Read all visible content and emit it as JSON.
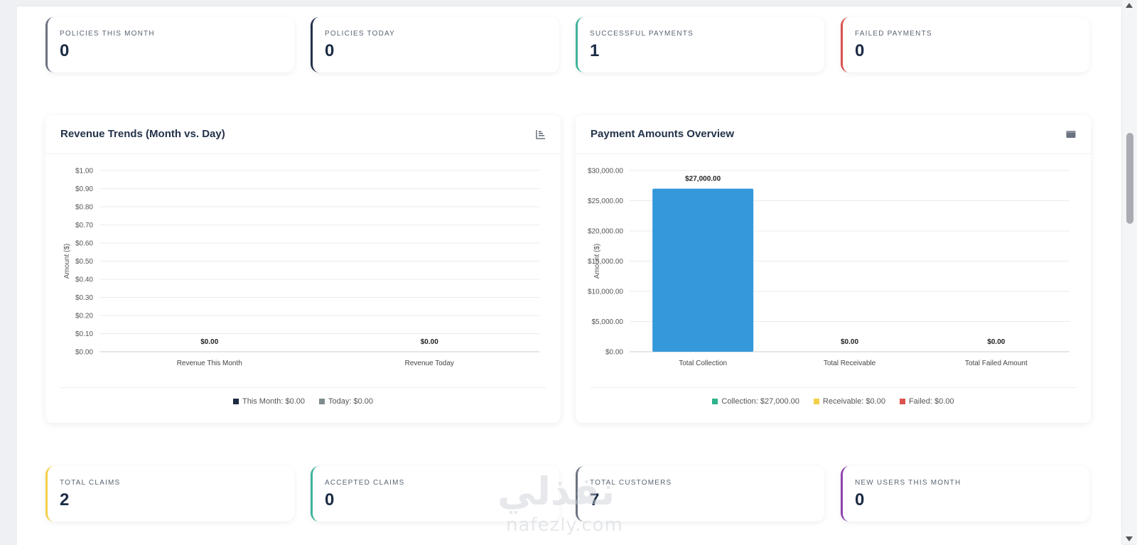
{
  "stats_top": [
    {
      "label": "POLICIES THIS MONTH",
      "value": "0",
      "accent": "#6b7280"
    },
    {
      "label": "POLICIES TODAY",
      "value": "0",
      "accent": "#23324a"
    },
    {
      "label": "SUCCESSFUL PAYMENTS",
      "value": "1",
      "accent": "#3fb39a"
    },
    {
      "label": "FAILED PAYMENTS",
      "value": "0",
      "accent": "#d9534f"
    }
  ],
  "stats_bottom": [
    {
      "label": "TOTAL CLAIMS",
      "value": "2",
      "accent": "#f2d049"
    },
    {
      "label": "ACCEPTED CLAIMS",
      "value": "0",
      "accent": "#3fb39a"
    },
    {
      "label": "TOTAL CUSTOMERS",
      "value": "7",
      "accent": "#6b7280"
    },
    {
      "label": "NEW USERS THIS MONTH",
      "value": "0",
      "accent": "#8e44ad"
    }
  ],
  "revenue_card": {
    "title": "Revenue Trends (Month vs. Day)",
    "icon": "bar-chart-icon"
  },
  "payment_card": {
    "title": "Payment Amounts Overview",
    "icon": "wallet-icon"
  },
  "chart_data": [
    {
      "type": "bar",
      "ylabel": "Amount ($)",
      "ylim": [
        0,
        1
      ],
      "yticks": [
        "$1.00",
        "$0.90",
        "$0.80",
        "$0.70",
        "$0.60",
        "$0.50",
        "$0.40",
        "$0.30",
        "$0.20",
        "$0.10",
        "$0.00"
      ],
      "categories": [
        "Revenue This Month",
        "Revenue Today"
      ],
      "values": [
        0,
        0
      ],
      "data_labels": [
        "$0.00",
        "$0.00"
      ],
      "bar_colors": [
        "#1b2b44",
        "#7f8c8d"
      ],
      "legend": [
        {
          "label": "This Month: $0.00",
          "color": "#1b2b44"
        },
        {
          "label": "Today: $0.00",
          "color": "#7f8c8d"
        }
      ],
      "grid": true,
      "legend_position": "bottom"
    },
    {
      "type": "bar",
      "ylabel": "Amount ($)",
      "ylim": [
        0,
        30000
      ],
      "yticks": [
        "$30,000.00",
        "$25,000.00",
        "$20,000.00",
        "$15,000.00",
        "$10,000.00",
        "$5,000.00",
        "$0.00"
      ],
      "categories": [
        "Total Collection",
        "Total Receivable",
        "Total Failed Amount"
      ],
      "values": [
        27000,
        0,
        0
      ],
      "data_labels": [
        "$27,000.00",
        "$0.00",
        "$0.00"
      ],
      "bar_colors": [
        "#3498db",
        "#f2d049",
        "#d9534f"
      ],
      "legend": [
        {
          "label": "Collection: $27,000.00",
          "color": "#2fb38c"
        },
        {
          "label": "Receivable: $0.00",
          "color": "#f2d049"
        },
        {
          "label": "Failed: $0.00",
          "color": "#d9534f"
        }
      ],
      "grid": true,
      "legend_position": "bottom"
    }
  ],
  "watermark": {
    "arabic": "نفذلي",
    "latin": "nafezly.com"
  }
}
